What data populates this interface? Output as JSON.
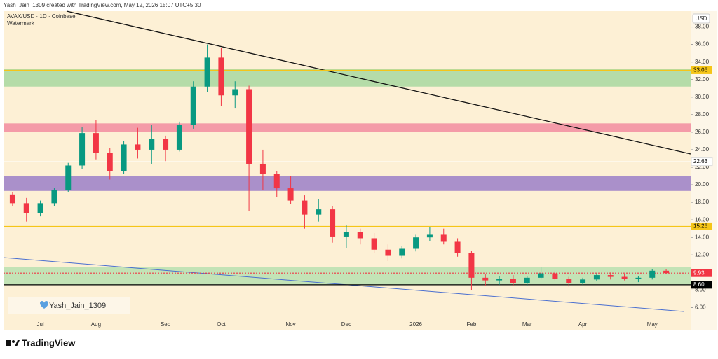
{
  "header": "Yash_Jain_1309 created with TradingView.com, May 12, 2026 15:07 UTC+5:30",
  "symbol": "AVAX/USD · 1D · Coinbase",
  "watermark_label": "Watermark",
  "currency": "USD",
  "watermark": "Yash_Jain_1309",
  "footer": "TradingView",
  "chart_data": {
    "type": "candlestick",
    "categories": [
      null,
      null,
      "Jul",
      null,
      null,
      null,
      "Aug",
      null,
      null,
      null,
      null,
      "Sep",
      null,
      null,
      null,
      "Oct",
      null,
      null,
      null,
      null,
      "Nov",
      null,
      null,
      null,
      "Dec",
      null,
      null,
      null,
      null,
      "2026",
      null,
      null,
      null,
      "Feb",
      null,
      null,
      null,
      "Mar",
      null,
      null,
      null,
      "Apr",
      null,
      null,
      null,
      null,
      "May",
      null
    ],
    "open": [
      18.9,
      17.9,
      16.8,
      17.9,
      19.4,
      22.2,
      25.9,
      23.6,
      21.6,
      24.6,
      24.0,
      25.2,
      24.0,
      26.8,
      31.2,
      34.5,
      30.2,
      30.9,
      22.4,
      21.2,
      19.6,
      18.2,
      16.6,
      17.2,
      14.1,
      14.6,
      13.9,
      12.6,
      11.9,
      12.7,
      14.0,
      14.3,
      13.5,
      12.2,
      9.4,
      9.1,
      9.3,
      8.8,
      9.4,
      9.9,
      9.3,
      8.8,
      9.2,
      9.7,
      9.5,
      9.3,
      9.4,
      10.2
    ],
    "high": [
      19.2,
      18.5,
      18.2,
      19.6,
      22.5,
      26.6,
      27.4,
      24.2,
      25.0,
      26.5,
      26.8,
      25.6,
      27.2,
      31.8,
      36.0,
      35.6,
      31.8,
      31.3,
      24.0,
      21.6,
      21.0,
      18.8,
      18.4,
      17.6,
      15.4,
      15.0,
      14.5,
      13.2,
      13.0,
      14.3,
      15.2,
      15.0,
      13.9,
      12.5,
      9.8,
      9.6,
      9.7,
      9.6,
      10.6,
      10.2,
      9.5,
      9.4,
      9.9,
      10.0,
      9.8,
      9.6,
      10.4,
      10.4
    ],
    "low": [
      17.6,
      15.8,
      16.4,
      17.6,
      19.2,
      21.8,
      22.9,
      20.6,
      21.2,
      23.0,
      22.4,
      22.7,
      23.8,
      26.4,
      30.6,
      29.0,
      28.7,
      17.0,
      19.4,
      18.6,
      17.8,
      15.0,
      15.8,
      13.4,
      12.8,
      13.2,
      12.2,
      11.3,
      11.6,
      12.4,
      13.6,
      13.2,
      11.8,
      8.0,
      8.5,
      8.6,
      8.5,
      8.5,
      9.2,
      9.1,
      8.4,
      8.6,
      9.0,
      9.2,
      9.1,
      8.9,
      9.2,
      9.8
    ],
    "close": [
      17.9,
      16.8,
      17.9,
      19.4,
      22.2,
      25.9,
      23.6,
      21.6,
      24.6,
      24.0,
      25.2,
      24.0,
      26.8,
      31.2,
      34.5,
      30.2,
      30.9,
      22.4,
      21.2,
      19.6,
      18.2,
      16.6,
      17.2,
      14.1,
      14.6,
      13.9,
      12.6,
      11.9,
      12.7,
      14.0,
      14.3,
      13.5,
      12.2,
      9.4,
      9.1,
      9.3,
      8.8,
      9.4,
      9.9,
      9.3,
      8.8,
      9.2,
      9.7,
      9.5,
      9.3,
      9.4,
      10.2,
      9.93
    ],
    "up_color": "#089981",
    "down_color": "#f23645",
    "ylim": [
      3.4,
      39.8
    ],
    "yticks": [
      {
        "value": 6,
        "label": "6.00"
      },
      {
        "value": 8,
        "label": "8.00"
      },
      {
        "value": 10,
        "label": "10.00"
      },
      {
        "value": 12,
        "label": "12.00"
      },
      {
        "value": 14,
        "label": "14.00"
      },
      {
        "value": 16,
        "label": "16.00"
      },
      {
        "value": 18,
        "label": "18.00"
      },
      {
        "value": 20,
        "label": "20.00"
      },
      {
        "value": 22,
        "label": "22.00"
      },
      {
        "value": 24,
        "label": "24.00"
      },
      {
        "value": 26,
        "label": "26.00"
      },
      {
        "value": 28,
        "label": "28.00"
      },
      {
        "value": 30,
        "label": "30.00"
      },
      {
        "value": 32,
        "label": "32.00"
      },
      {
        "value": 34,
        "label": "34.00"
      },
      {
        "value": 36,
        "label": "36.00"
      },
      {
        "value": 38,
        "label": "38.00"
      }
    ],
    "zones": [
      {
        "low": 31.2,
        "high": 33.2,
        "color": "#a8d8a0"
      },
      {
        "low": 26.0,
        "high": 27.0,
        "color": "#f28ca0"
      },
      {
        "low": 19.3,
        "high": 21.0,
        "color": "#9b7fc8"
      },
      {
        "low": 8.6,
        "high": 10.6,
        "color": "#b9e0b0"
      }
    ],
    "price_lines": [
      {
        "value": 33.06,
        "color": "#f5c518",
        "text_color": "#000000"
      },
      {
        "value": 22.63,
        "color": "#ffffff",
        "text_color": "#000000"
      },
      {
        "value": 15.26,
        "color": "#f5c518",
        "text_color": "#000000"
      },
      {
        "value": 9.93,
        "color": "#f23645",
        "text_color": "#ffffff"
      },
      {
        "value": {
          "value": 8.6,
          "label": "8.60"
        },
        "color": "#000000",
        "text_color": "#ffffff"
      }
    ]
  }
}
